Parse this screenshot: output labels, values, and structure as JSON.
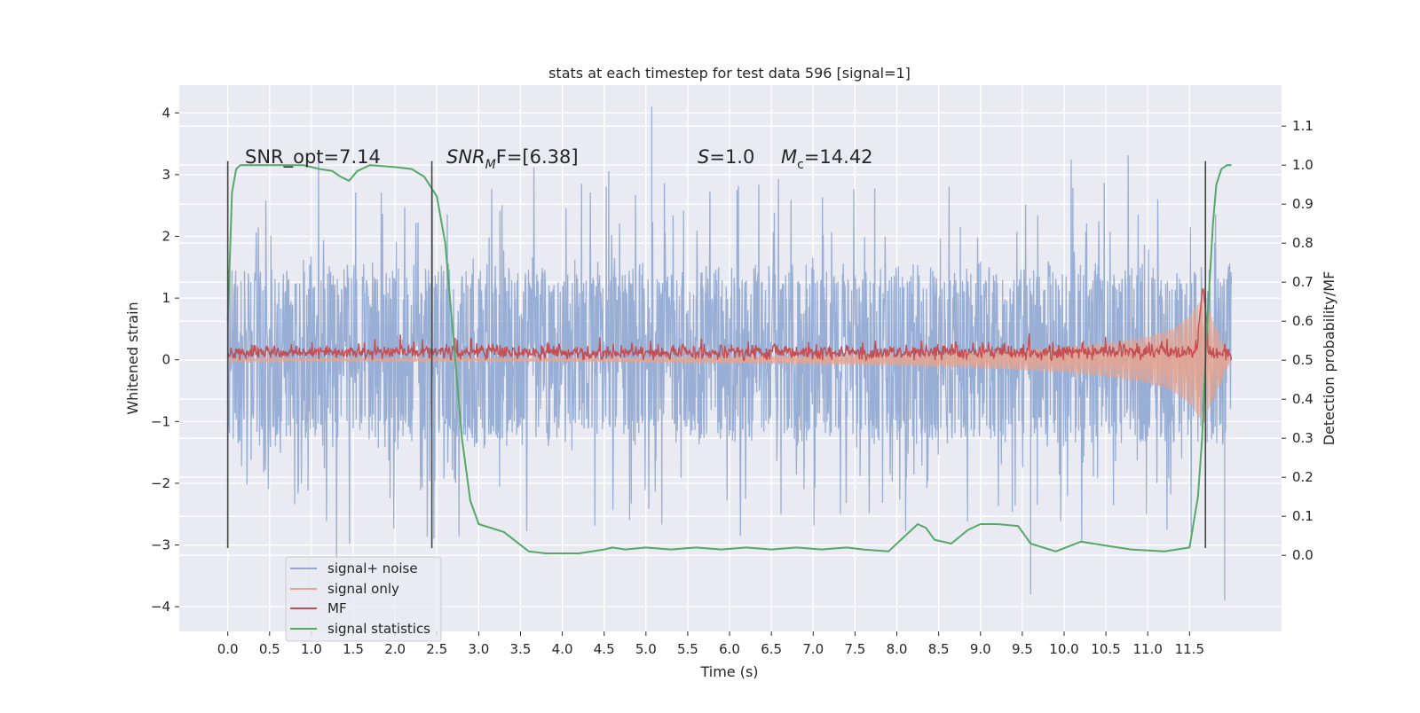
{
  "chart_data": {
    "type": "line",
    "title": "stats at each timestep for test data 596 [signal=1]",
    "xlabel": "Time (s)",
    "ylabel": "Whitened strain",
    "y2label": "Detection probability/MF",
    "xlim": [
      -0.58,
      12.6
    ],
    "ylim": [
      -4.4,
      4.45
    ],
    "y2lim": [
      -0.195,
      1.205
    ],
    "x_ticks": [
      "0.0",
      "0.5",
      "1.0",
      "1.5",
      "2.0",
      "2.5",
      "3.0",
      "3.5",
      "4.0",
      "4.5",
      "5.0",
      "5.5",
      "6.0",
      "6.5",
      "7.0",
      "7.5",
      "8.0",
      "8.5",
      "9.0",
      "9.5",
      "10.0",
      "10.5",
      "11.0",
      "11.5"
    ],
    "y_ticks": [
      "4",
      "3",
      "2",
      "1",
      "0",
      "−1",
      "−2",
      "−3",
      "−4"
    ],
    "y2_ticks": [
      "1.1",
      "1.0",
      "0.9",
      "0.8",
      "0.7",
      "0.6",
      "0.5",
      "0.4",
      "0.3",
      "0.2",
      "0.1",
      "0.0"
    ],
    "grid": true,
    "annotations": {
      "snr_opt": "SNR_opt=7.14",
      "snr_mf": {
        "base": "SNR",
        "sub": "M",
        "rest": "F=[6.38]"
      },
      "s": {
        "sym": "S",
        "rest": "=1.0"
      },
      "mc": {
        "base": "M",
        "sub": "c",
        "rest": "=14.42"
      }
    },
    "vlines": [
      {
        "x": 0.0,
        "y_top": 3.22,
        "y_bottom": -3.05
      },
      {
        "x": 2.44,
        "y_top": 3.22,
        "y_bottom": -3.05
      },
      {
        "x": 11.69,
        "y_top": 3.22,
        "y_bottom": -3.05
      }
    ],
    "legend": {
      "placement": "lower-left",
      "entries": [
        "signal+ noise",
        "signal only",
        "MF",
        "signal statistics"
      ]
    },
    "series": [
      {
        "name": "signal+ noise",
        "axis": "left",
        "color": "#8fa7d2",
        "x_range": [
          0.0,
          12.0
        ],
        "typical_band": [
          -1.2,
          1.35
        ],
        "spike_envelope": [
          -3.9,
          4.1
        ],
        "notable_peaks": [
          {
            "x": 5.07,
            "y": 4.1
          },
          {
            "x": 11.92,
            "y": -3.9
          },
          {
            "x": 9.6,
            "y": -3.8
          }
        ]
      },
      {
        "name": "signal only",
        "axis": "left",
        "color": "#e8a38d",
        "x_range": [
          0.0,
          12.0
        ],
        "envelope": [
          [
            0.0,
            0.02
          ],
          [
            4.0,
            0.03
          ],
          [
            6.0,
            0.05
          ],
          [
            8.0,
            0.09
          ],
          [
            9.0,
            0.13
          ],
          [
            10.0,
            0.2
          ],
          [
            10.5,
            0.27
          ],
          [
            11.0,
            0.37
          ],
          [
            11.3,
            0.5
          ],
          [
            11.5,
            0.7
          ],
          [
            11.6,
            0.9
          ],
          [
            11.66,
            1.0
          ]
        ]
      },
      {
        "name": "MF",
        "axis": "right",
        "color": "#c44e52",
        "x_range": [
          0.0,
          12.0
        ],
        "mean": 0.52,
        "range": [
          0.5,
          0.58
        ],
        "peak": {
          "x": 11.66,
          "y": 0.69
        }
      },
      {
        "name": "signal statistics",
        "axis": "right",
        "color": "#55a868",
        "x": [
          0.0,
          0.05,
          0.1,
          0.15,
          0.25,
          0.4,
          0.6,
          0.9,
          1.1,
          1.25,
          1.35,
          1.45,
          1.55,
          1.7,
          2.0,
          2.2,
          2.35,
          2.5,
          2.6,
          2.7,
          2.8,
          2.9,
          3.0,
          3.3,
          3.6,
          3.8,
          4.2,
          4.5,
          4.6,
          4.75,
          5.0,
          5.3,
          5.6,
          5.9,
          6.2,
          6.5,
          6.8,
          7.1,
          7.4,
          7.6,
          7.9,
          8.1,
          8.25,
          8.35,
          8.45,
          8.65,
          8.85,
          9.0,
          9.2,
          9.45,
          9.6,
          9.9,
          10.2,
          10.5,
          10.8,
          11.2,
          11.5,
          11.6,
          11.65,
          11.7,
          11.78,
          11.82,
          11.88,
          11.95,
          12.0
        ],
        "y": [
          0.6,
          0.93,
          0.99,
          1.0,
          1.0,
          1.0,
          1.0,
          1.0,
          0.99,
          0.985,
          0.97,
          0.96,
          0.985,
          1.0,
          0.995,
          0.99,
          0.97,
          0.92,
          0.8,
          0.55,
          0.3,
          0.14,
          0.08,
          0.06,
          0.01,
          0.005,
          0.005,
          0.015,
          0.02,
          0.015,
          0.02,
          0.015,
          0.02,
          0.015,
          0.02,
          0.015,
          0.02,
          0.015,
          0.02,
          0.015,
          0.01,
          0.05,
          0.08,
          0.07,
          0.04,
          0.03,
          0.065,
          0.08,
          0.08,
          0.075,
          0.03,
          0.01,
          0.035,
          0.025,
          0.015,
          0.01,
          0.02,
          0.15,
          0.3,
          0.55,
          0.85,
          0.95,
          0.99,
          1.0,
          1.0
        ]
      }
    ]
  }
}
